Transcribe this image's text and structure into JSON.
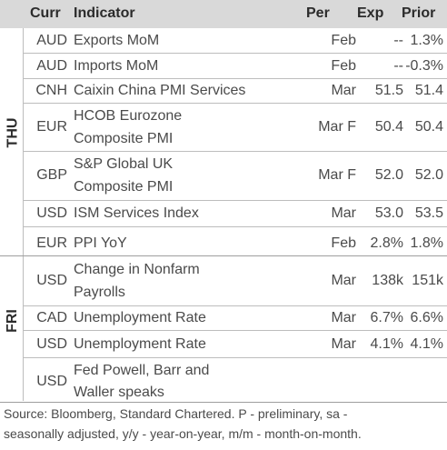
{
  "header": {
    "curr": "Curr",
    "indicator": "Indicator",
    "per": "Per",
    "exp": "Exp",
    "prior": "Prior"
  },
  "groups": {
    "thu": "THU",
    "fri": "FRI"
  },
  "rows": [
    {
      "curr": "AUD",
      "ind1": "Exports MoM",
      "ind2": "",
      "per": "Feb",
      "exp": "--",
      "prior": "1.3%"
    },
    {
      "curr": "AUD",
      "ind1": "Imports MoM",
      "ind2": "",
      "per": "Feb",
      "exp": "--",
      "prior": "-0.3%"
    },
    {
      "curr": "CNH",
      "ind1": "Caixin China PMI Services",
      "ind2": "",
      "per": "Mar",
      "exp": "51.5",
      "prior": "51.4"
    },
    {
      "curr": "EUR",
      "ind1": "HCOB Eurozone",
      "ind2": "Composite PMI",
      "per": "Mar F",
      "exp": "50.4",
      "prior": "50.4"
    },
    {
      "curr": "GBP",
      "ind1": "S&P Global UK",
      "ind2": "Composite PMI",
      "per": "Mar F",
      "exp": "52.0",
      "prior": "52.0"
    },
    {
      "curr": "USD",
      "ind1": "ISM Services Index",
      "ind2": "",
      "per": "Mar",
      "exp": "53.0",
      "prior": "53.5"
    },
    {
      "curr": "EUR",
      "ind1": "PPI YoY",
      "ind2": "",
      "per": "Feb",
      "exp": "2.8%",
      "prior": "1.8%"
    },
    {
      "curr": "USD",
      "ind1": "Change in Nonfarm",
      "ind2": "Payrolls",
      "per": "Mar",
      "exp": "138k",
      "prior": "151k"
    },
    {
      "curr": "CAD",
      "ind1": "Unemployment Rate",
      "ind2": "",
      "per": "Mar",
      "exp": "6.7%",
      "prior": "6.6%"
    },
    {
      "curr": "USD",
      "ind1": "Unemployment Rate",
      "ind2": "",
      "per": "Mar",
      "exp": "4.1%",
      "prior": "4.1%"
    },
    {
      "curr": "USD",
      "ind1": "Fed Powell, Barr and",
      "ind2": "Waller speaks",
      "per": "",
      "exp": "",
      "prior": ""
    }
  ],
  "footer": {
    "line1": "Source: Bloomberg, Standard Chartered. P - preliminary, sa -",
    "line2": "seasonally adjusted, y/y - year-on-year, m/m - month-on-month."
  }
}
